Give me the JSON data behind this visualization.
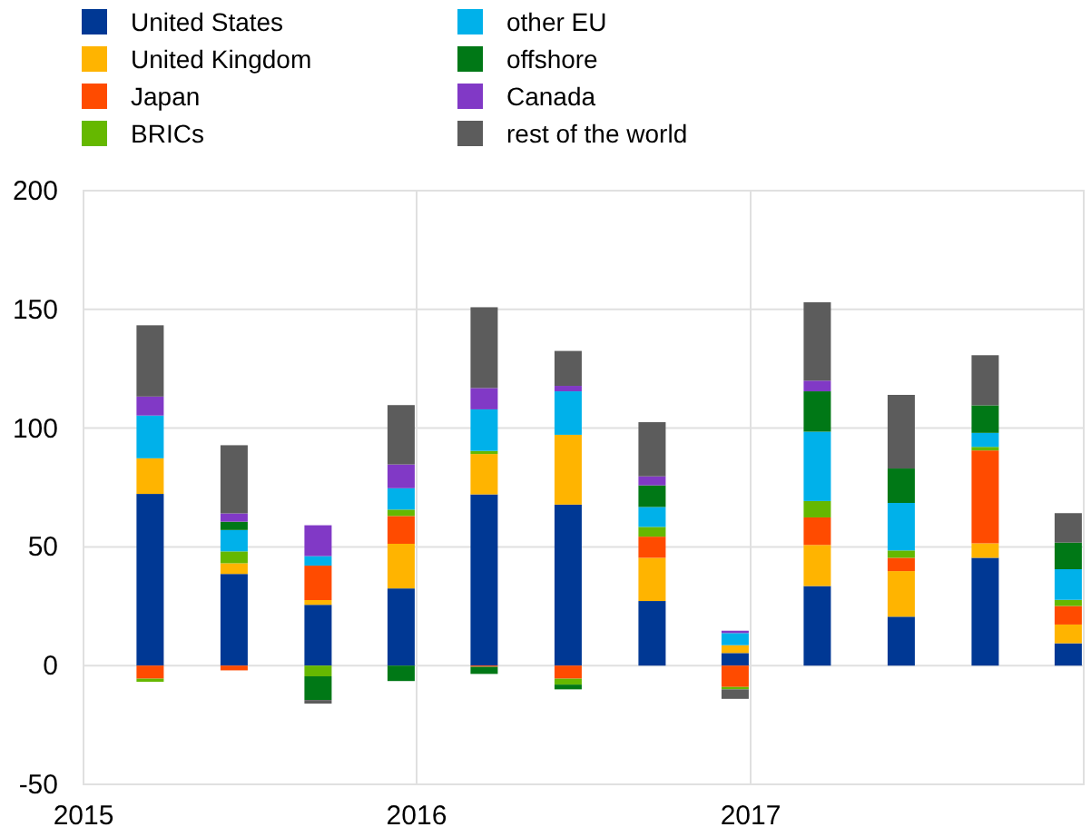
{
  "chart_data": {
    "type": "bar",
    "stacked": true,
    "x": [
      "2015-03-15",
      "2015-06-15",
      "2015-09-15",
      "2015-12-15",
      "2016-03-15",
      "2016-06-15",
      "2016-09-15",
      "2016-12-15",
      "2017-03-15",
      "2017-06-15",
      "2017-09-15",
      "2017-12-15"
    ],
    "xlim": [
      "2015-01-01",
      "2018-01-01"
    ],
    "xticks": [
      {
        "value": "2015-01-01",
        "label": "2015"
      },
      {
        "value": "2016-01-01",
        "label": "2016"
      },
      {
        "value": "2017-01-01",
        "label": "2017"
      }
    ],
    "ylim": [
      -50,
      200
    ],
    "yticks": [
      -50,
      0,
      50,
      100,
      150,
      200
    ],
    "grid": true,
    "legend": "top",
    "series": [
      {
        "name": "United States",
        "color": "#003894",
        "values": [
          72.3,
          38.6,
          25.6,
          32.5,
          72.1,
          67.8,
          27.2,
          5.3,
          33.5,
          20.6,
          45.4,
          9.4
        ]
      },
      {
        "name": "United Kingdom",
        "color": "#ffb400",
        "values": [
          15,
          4.5,
          2,
          18.8,
          17,
          29.4,
          18.2,
          3.3,
          17.3,
          19.2,
          6.1,
          7.9
        ]
      },
      {
        "name": "Japan",
        "color": "#ff4b00",
        "values": [
          -5.5,
          -2,
          14.5,
          11.7,
          -0.5,
          -5.5,
          8.9,
          -9,
          11.6,
          5.6,
          39.1,
          7.8
        ]
      },
      {
        "name": "BRICs",
        "color": "#65b800",
        "values": [
          -1.3,
          5,
          -4.5,
          2.7,
          1.3,
          -2.5,
          4.1,
          -1,
          6.9,
          3.1,
          1.5,
          2.6
        ]
      },
      {
        "name": "other EU",
        "color": "#00b1ea",
        "values": [
          18,
          9,
          4,
          9,
          17.5,
          18.3,
          8.4,
          5.1,
          29.2,
          20,
          5.9,
          12.9
        ]
      },
      {
        "name": "offshore",
        "color": "#007816",
        "values": [
          0,
          3.5,
          -10,
          -6.5,
          -3,
          -2,
          9.1,
          0,
          17,
          14.5,
          11.6,
          11.2
        ]
      },
      {
        "name": "Canada",
        "color": "#8139c6",
        "values": [
          8,
          3.5,
          13,
          10,
          9,
          2.3,
          3.8,
          1,
          4.5,
          0,
          0,
          0
        ]
      },
      {
        "name": "rest of the world",
        "color": "#5c5c5c",
        "values": [
          30,
          28.7,
          -1.5,
          25,
          34,
          14.7,
          22.8,
          -4,
          33,
          31,
          21.1,
          12.4
        ]
      }
    ]
  }
}
